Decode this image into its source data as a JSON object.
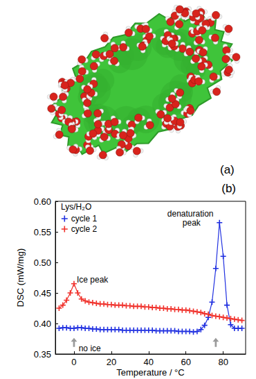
{
  "panel_a": {
    "label": "(a)"
  },
  "chart_data": {
    "type": "line",
    "title": "(b)",
    "x_label": "Temperature / °C",
    "y_label": "DSC (mW/mg)",
    "legend_title": "Lys/H₂O",
    "legend": "upper left",
    "grid": false,
    "marker": "plus",
    "xlim": [
      -10,
      92
    ],
    "xticks": [
      0,
      20,
      40,
      60,
      80
    ],
    "ylim": [
      0.35,
      0.6
    ],
    "yticks": [
      0.35,
      {
        "value": 0.4,
        "label": "0.40"
      },
      0.45,
      {
        "value": 0.5,
        "label": "0.50"
      },
      0.55,
      {
        "value": 0.6,
        "label": "0.60"
      }
    ],
    "x": [
      -8,
      -6,
      -4,
      -2,
      0,
      2,
      4,
      6,
      8,
      10,
      12,
      14,
      16,
      18,
      20,
      22,
      24,
      26,
      28,
      30,
      32,
      34,
      36,
      38,
      40,
      42,
      44,
      46,
      48,
      50,
      52,
      54,
      56,
      58,
      60,
      62,
      64,
      66,
      68,
      70,
      72,
      74,
      76,
      78,
      80,
      82,
      84,
      86,
      88,
      90
    ],
    "series": [
      {
        "name": "cycle 1",
        "color": "#1f2fe0",
        "values": [
          0.392,
          0.393,
          0.393,
          0.392,
          0.392,
          0.393,
          0.393,
          0.392,
          0.392,
          0.391,
          0.391,
          0.39,
          0.39,
          0.39,
          0.39,
          0.39,
          0.39,
          0.389,
          0.389,
          0.389,
          0.389,
          0.389,
          0.389,
          0.389,
          0.389,
          0.389,
          0.388,
          0.388,
          0.388,
          0.388,
          0.388,
          0.388,
          0.387,
          0.387,
          0.387,
          0.387,
          0.386,
          0.387,
          0.39,
          0.397,
          0.41,
          0.435,
          0.49,
          0.565,
          0.51,
          0.43,
          0.398,
          0.392,
          0.392,
          0.392
        ]
      },
      {
        "name": "cycle 2",
        "color": "#f0302a",
        "values": [
          0.425,
          0.43,
          0.438,
          0.45,
          0.465,
          0.45,
          0.44,
          0.437,
          0.435,
          0.434,
          0.433,
          0.432,
          0.432,
          0.431,
          0.431,
          0.43,
          0.43,
          0.43,
          0.429,
          0.429,
          0.428,
          0.428,
          0.428,
          0.427,
          0.427,
          0.426,
          0.426,
          0.425,
          0.425,
          0.424,
          0.424,
          0.423,
          0.423,
          0.422,
          0.422,
          0.421,
          0.42,
          0.419,
          0.418,
          0.416,
          0.415,
          0.413,
          0.412,
          0.411,
          0.41,
          0.409,
          0.408,
          0.407,
          0.406,
          0.405
        ]
      }
    ],
    "annotations": [
      {
        "text": "Ice peak",
        "x": 1.5,
        "y": 0.472
      },
      {
        "text": "denaturation peak",
        "x": 63,
        "y": 0.572
      },
      {
        "text": "no ice",
        "x": 2.5,
        "y": 0.359
      }
    ],
    "arrows": [
      {
        "x": 0,
        "y": 0.369
      },
      {
        "x": 76,
        "y": 0.369
      }
    ]
  }
}
